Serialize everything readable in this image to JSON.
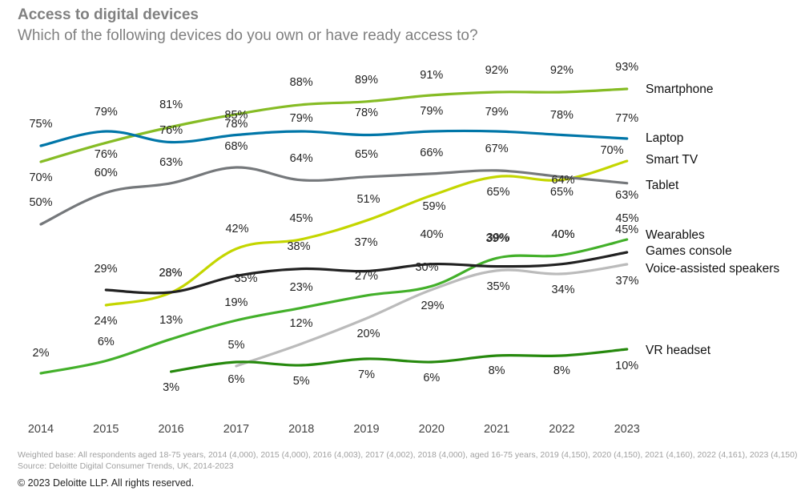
{
  "header": {
    "title": "Access to digital devices",
    "subtitle": "Which of the following devices do you own or have ready access to?"
  },
  "footer": {
    "base": "Weighted base: All respondents aged 18-75 years, 2014 (4,000), 2015 (4,000), 2016 (4,003), 2017 (4,002), 2018 (4,000), aged 16-75 years, 2019 (4,150), 2020 (4,150), 2021 (4,160), 2022 (4,161), 2023 (4,150)",
    "source": "Source: Deloitte Digital Consumer Trends, UK, 2014-2023",
    "copyright": "© 2023 Deloitte LLP. All rights reserved."
  },
  "chart_data": {
    "type": "line",
    "title": "Access to digital devices",
    "subtitle": "Which of the following devices do you own or have ready access to?",
    "categories": [
      "2014",
      "2015",
      "2016",
      "2017",
      "2018",
      "2019",
      "2020",
      "2021",
      "2022",
      "2023"
    ],
    "unit": "%",
    "ylim": [
      0,
      100
    ],
    "grid": false,
    "legend": "inline labels at right end of each line",
    "series": [
      {
        "name": "Smartphone",
        "color": "#86BC25",
        "values": [
          70,
          76,
          81,
          85,
          88,
          89,
          91,
          92,
          92,
          93
        ]
      },
      {
        "name": "Laptop",
        "color": "#0076A8",
        "values": [
          75,
          79,
          76,
          78,
          79,
          78,
          79,
          79,
          78,
          77
        ]
      },
      {
        "name": "Smart TV",
        "color": "#C4D600",
        "values": [
          null,
          24,
          28,
          42,
          45,
          51,
          59,
          65,
          64,
          70
        ]
      },
      {
        "name": "Tablet",
        "color": "#75787B",
        "values": [
          50,
          60,
          63,
          68,
          64,
          65,
          66,
          67,
          65,
          63
        ]
      },
      {
        "name": "Wearables",
        "color": "#43B02A",
        "values": [
          2,
          6,
          13,
          19,
          23,
          27,
          30,
          39,
          40,
          45
        ]
      },
      {
        "name": "Games console",
        "color": "#222222",
        "values": [
          null,
          29,
          28,
          35,
          38,
          37,
          40,
          39,
          40,
          45
        ]
      },
      {
        "name": "Voice-assisted speakers",
        "color": "#BBBBBB",
        "values": [
          null,
          null,
          null,
          5,
          12,
          20,
          29,
          35,
          34,
          37
        ]
      },
      {
        "name": "VR headset",
        "color": "#26890D",
        "values": [
          null,
          null,
          3,
          6,
          5,
          7,
          6,
          8,
          8,
          10
        ]
      }
    ]
  }
}
